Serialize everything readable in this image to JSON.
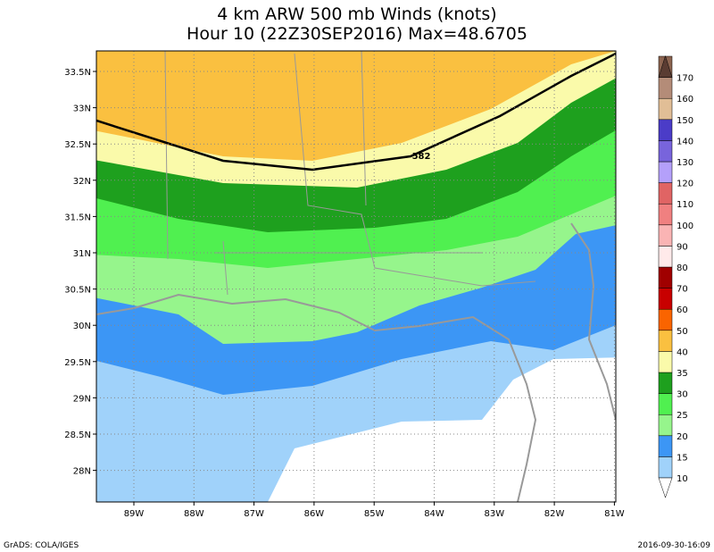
{
  "title": {
    "line1": "4 km ARW 500 mb Winds (knots)",
    "line2": "Hour 10 (22Z30SEP2016) Max=48.6705"
  },
  "map": {
    "lat_labels": [
      "33.5N",
      "33N",
      "32.5N",
      "32N",
      "31.5N",
      "31N",
      "30.5N",
      "30N",
      "29.5N",
      "29N",
      "28.5N",
      "28N"
    ],
    "lon_labels": [
      "89W",
      "88W",
      "87W",
      "86W",
      "85W",
      "84W",
      "83W",
      "82W",
      "81W"
    ],
    "contour_label": "582"
  },
  "colorbar": {
    "levels": [
      10,
      15,
      20,
      25,
      30,
      35,
      40,
      50,
      60,
      70,
      80,
      90,
      100,
      110,
      120,
      130,
      140,
      150,
      160,
      170
    ],
    "colors": [
      "#a0d2fa",
      "#3c96f5",
      "#96f58c",
      "#50f050",
      "#1ea01e",
      "#fafaaa",
      "#fac040",
      "#fa6400",
      "#c80000",
      "#a00000",
      "#ffeaea",
      "#fab4b4",
      "#f08080",
      "#e06464",
      "#b4a0fa",
      "#7864dc",
      "#4b3cc8",
      "#e1be96",
      "#b48c78",
      "#8c6450"
    ]
  },
  "footer": {
    "left": "GrADS: COLA/IGES",
    "right": "2016-09-30-16:09"
  }
}
